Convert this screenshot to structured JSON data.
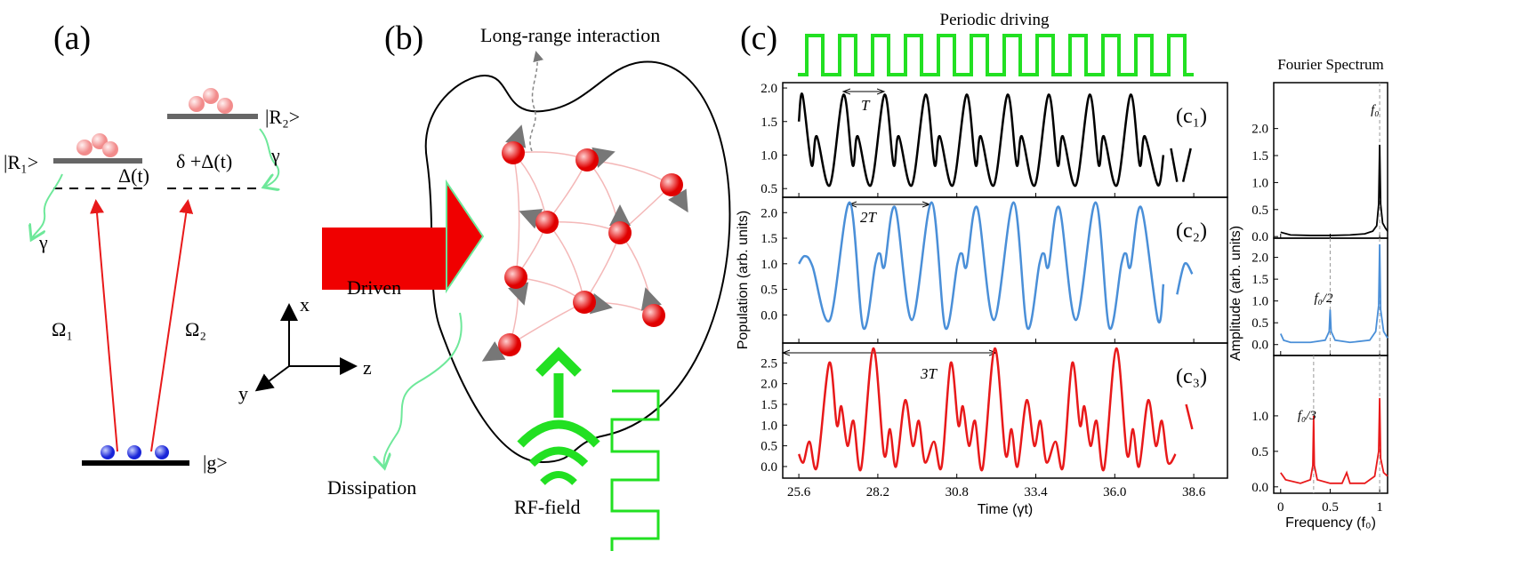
{
  "panel_a": {
    "label": "(a)",
    "r1": "|R₁>",
    "r2": "|R₂>",
    "delta1": "Δ(t)",
    "delta2": "δ +Δ(t)",
    "gamma1": "γ",
    "gamma2": "γ",
    "omega1": "Ω₁",
    "omega2": "Ω₂",
    "ground": "|g>",
    "axis_x": "x",
    "axis_y": "y",
    "axis_z": "z"
  },
  "panel_b": {
    "label": "(b)",
    "interaction": "Long-range interaction",
    "driven": "Driven",
    "dissipation": "Dissipation",
    "rf": "RF-field"
  },
  "panel_c": {
    "label": "(c)",
    "driving": "Periodic driving",
    "period1": "T",
    "period2": "2T",
    "period3": "3T"
  },
  "chart_data": [
    {
      "type": "line",
      "annotation": "(c₁)",
      "color": "#000000",
      "x": [
        25.6,
        25.72,
        26.02,
        26.19,
        26.62,
        27.07,
        27.37,
        27.54,
        27.97,
        28.42,
        28.72,
        28.89,
        29.32,
        29.77,
        30.07,
        30.24,
        30.67,
        31.12,
        31.42,
        31.59,
        32.02,
        32.47,
        32.77,
        32.94,
        33.37,
        33.82,
        34.12,
        34.29,
        34.72,
        35.17,
        35.47,
        35.64,
        36.07,
        36.52,
        36.82,
        36.99,
        37.42,
        37.6,
        null,
        37.85,
        38.05,
        null,
        38.25,
        38.5
      ],
      "values": [
        1.5,
        1.9,
        0.85,
        1.28,
        0.55,
        1.9,
        0.85,
        1.28,
        0.55,
        1.9,
        0.85,
        1.28,
        0.55,
        1.9,
        0.85,
        1.28,
        0.55,
        1.9,
        0.85,
        1.28,
        0.55,
        1.9,
        0.85,
        1.28,
        0.55,
        1.9,
        0.85,
        1.28,
        0.55,
        1.9,
        0.85,
        1.28,
        0.55,
        1.9,
        0.85,
        1.28,
        0.55,
        1.0,
        null,
        1.1,
        0.6,
        null,
        0.6,
        1.1
      ],
      "ylim": [
        0.37,
        2.08
      ],
      "yticks": [
        0.5,
        {
          "value": 1,
          "label": "1.0"
        },
        1.5,
        {
          "value": 2,
          "label": "2.0"
        }
      ]
    },
    {
      "type": "line",
      "annotation": "(c₂)",
      "color": "#4a8fd8",
      "ylabel": "Population (arb. units)",
      "x": [
        25.6,
        25.8,
        26.05,
        26.62,
        27.27,
        27.72,
        28.12,
        28.27,
        28.42,
        28.77,
        29.32,
        29.97,
        30.42,
        30.82,
        30.97,
        31.12,
        31.47,
        32.02,
        32.67,
        33.12,
        33.52,
        33.67,
        33.82,
        34.17,
        34.72,
        35.37,
        35.82,
        36.22,
        36.37,
        36.52,
        36.87,
        37.42,
        37.6,
        null,
        38.05,
        38.3,
        38.55
      ],
      "values": [
        1.0,
        1.15,
        0.95,
        -0.1,
        2.2,
        -0.25,
        1.0,
        1.2,
        0.95,
        2.1,
        -0.1,
        2.2,
        -0.25,
        1.0,
        1.2,
        0.95,
        2.1,
        -0.1,
        2.2,
        -0.25,
        1.0,
        1.2,
        0.95,
        2.1,
        -0.1,
        2.2,
        -0.25,
        1.0,
        1.2,
        0.95,
        2.1,
        -0.1,
        0.6,
        null,
        0.4,
        1.0,
        0.8
      ],
      "ylim": [
        -0.55,
        2.3
      ],
      "yticks": [
        {
          "value": 0,
          "label": "0.0"
        },
        0.5,
        {
          "value": 1,
          "label": "1.0"
        },
        1.5,
        {
          "value": 2,
          "label": "2.0"
        }
      ]
    },
    {
      "type": "line",
      "annotation": "(c₃)",
      "color": "#e8191a",
      "xlabel": "Time (γt)",
      "x": [
        25.6,
        25.75,
        25.95,
        26.2,
        26.6,
        26.85,
        27.0,
        27.2,
        27.4,
        27.65,
        28.05,
        28.4,
        28.6,
        28.8,
        29.1,
        29.35,
        29.55,
        29.75,
        30.05,
        30.3,
        30.6,
        30.85,
        31.0,
        31.2,
        31.4,
        31.65,
        32.05,
        32.4,
        32.6,
        32.8,
        33.1,
        33.35,
        33.55,
        33.75,
        34.05,
        34.3,
        34.6,
        34.85,
        35.0,
        35.2,
        35.4,
        35.65,
        36.05,
        36.4,
        36.6,
        36.8,
        37.1,
        37.35,
        37.55,
        37.75,
        38.0,
        null,
        38.35,
        38.55
      ],
      "values": [
        0.3,
        0.1,
        0.6,
        0.0,
        2.5,
        1.0,
        1.45,
        0.5,
        1.1,
        -0.05,
        2.85,
        0.3,
        0.9,
        0.0,
        1.6,
        0.5,
        1.1,
        0.1,
        0.6,
        0.0,
        2.5,
        1.0,
        1.45,
        0.5,
        1.1,
        -0.05,
        2.85,
        0.3,
        0.9,
        0.0,
        1.6,
        0.5,
        1.1,
        0.1,
        0.6,
        0.0,
        2.5,
        1.0,
        1.45,
        0.5,
        1.1,
        -0.05,
        2.85,
        0.3,
        0.9,
        0.0,
        1.6,
        0.5,
        1.1,
        0.1,
        0.3,
        null,
        1.5,
        0.9
      ],
      "xlim": [
        25.07,
        39.71
      ],
      "xticks": [
        25.6,
        28.2,
        30.8,
        33.4,
        {
          "value": 36,
          "label": "36.0"
        },
        38.6
      ],
      "ylim": [
        -0.28,
        2.98
      ],
      "yticks": [
        {
          "value": 0,
          "label": "0.0"
        },
        0.5,
        {
          "value": 1,
          "label": "1.0"
        },
        1.5,
        {
          "value": 2,
          "label": "2.0"
        },
        2.5
      ]
    },
    {
      "type": "spectrum",
      "title": "Fourier Spectrum",
      "color": "#000000",
      "annotation": "f₀",
      "reference_lines": [
        1
      ],
      "x": [
        0,
        0.1,
        0.3,
        0.5,
        0.7,
        0.85,
        0.93,
        0.97,
        0.99,
        1.0,
        1.01,
        1.03,
        1.06,
        1.08
      ],
      "values": [
        0.08,
        0.03,
        0.02,
        0.02,
        0.03,
        0.05,
        0.1,
        0.2,
        0.6,
        1.7,
        0.6,
        0.25,
        0.15,
        0.1
      ],
      "ylim": [
        -0.03,
        2.85
      ],
      "yticks": [
        {
          "value": 0,
          "label": "0.0"
        },
        0.5,
        {
          "value": 1,
          "label": "1.0"
        },
        1.5,
        {
          "value": 2,
          "label": "2.0"
        }
      ]
    },
    {
      "type": "spectrum",
      "color": "#4a8fd8",
      "annotation": "f₀/2",
      "ylabel": "Amplitude (arb. units)",
      "reference_lines": [
        0.5,
        1
      ],
      "x": [
        0,
        0.03,
        0.1,
        0.3,
        0.45,
        0.49,
        0.5,
        0.51,
        0.55,
        0.7,
        0.9,
        0.96,
        0.99,
        1.0,
        1.01,
        1.04,
        1.08
      ],
      "values": [
        0.25,
        0.1,
        0.05,
        0.05,
        0.1,
        0.3,
        0.8,
        0.3,
        0.1,
        0.05,
        0.1,
        0.3,
        0.9,
        2.3,
        0.8,
        0.3,
        0.15
      ],
      "ylim": [
        -0.25,
        2.44
      ],
      "yticks": [
        {
          "value": 0,
          "label": "0.0"
        },
        0.5,
        {
          "value": 1,
          "label": "1.0"
        },
        1.5,
        {
          "value": 2,
          "label": "2.0"
        }
      ]
    },
    {
      "type": "spectrum",
      "color": "#e8191a",
      "annotation": "f₀/3",
      "xlabel": "Frequency (f₀)",
      "reference_lines": [
        0.333,
        1
      ],
      "x": [
        0,
        0.05,
        0.2,
        0.3,
        0.325,
        0.333,
        0.34,
        0.37,
        0.5,
        0.62,
        0.667,
        0.7,
        0.85,
        0.95,
        0.99,
        1.0,
        1.01,
        1.04,
        1.08
      ],
      "values": [
        0.2,
        0.1,
        0.05,
        0.1,
        0.3,
        1.0,
        0.3,
        0.1,
        0.05,
        0.05,
        0.2,
        0.05,
        0.05,
        0.15,
        0.5,
        1.25,
        0.4,
        0.2,
        0.15
      ],
      "xlim": [
        -0.07,
        1.08
      ],
      "xticks": [
        0,
        0.5,
        1
      ],
      "ylim": [
        -0.09,
        1.85
      ],
      "yticks": [
        {
          "value": 0,
          "label": "0.0"
        },
        0.5,
        {
          "value": 1,
          "label": "1.0"
        }
      ]
    }
  ]
}
